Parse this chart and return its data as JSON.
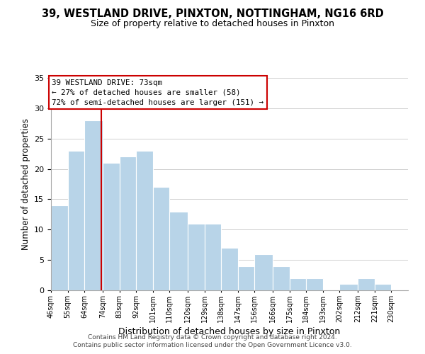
{
  "title": "39, WESTLAND DRIVE, PINXTON, NOTTINGHAM, NG16 6RD",
  "subtitle": "Size of property relative to detached houses in Pinxton",
  "xlabel": "Distribution of detached houses by size in Pinxton",
  "ylabel": "Number of detached properties",
  "footer_lines": [
    "Contains HM Land Registry data © Crown copyright and database right 2024.",
    "Contains public sector information licensed under the Open Government Licence v3.0."
  ],
  "bin_labels": [
    "46sqm",
    "55sqm",
    "64sqm",
    "74sqm",
    "83sqm",
    "92sqm",
    "101sqm",
    "110sqm",
    "120sqm",
    "129sqm",
    "138sqm",
    "147sqm",
    "156sqm",
    "166sqm",
    "175sqm",
    "184sqm",
    "193sqm",
    "202sqm",
    "212sqm",
    "221sqm",
    "230sqm"
  ],
  "bar_heights": [
    14,
    23,
    28,
    21,
    22,
    23,
    17,
    13,
    11,
    11,
    7,
    4,
    6,
    4,
    2,
    2,
    0,
    1,
    2,
    1,
    0
  ],
  "bar_color": "#b8d4e8",
  "bar_edge_color": "#ffffff",
  "grid_color": "#d0d0d0",
  "property_line_x": 73,
  "property_line_color": "#cc0000",
  "annotation_text": "39 WESTLAND DRIVE: 73sqm\n← 27% of detached houses are smaller (58)\n72% of semi-detached houses are larger (151) →",
  "annotation_box_color": "#ffffff",
  "annotation_box_edge_color": "#cc0000",
  "ylim": [
    0,
    35
  ],
  "yticks": [
    0,
    5,
    10,
    15,
    20,
    25,
    30,
    35
  ],
  "bin_edges": [
    46,
    55,
    64,
    74,
    83,
    92,
    101,
    110,
    120,
    129,
    138,
    147,
    156,
    166,
    175,
    184,
    193,
    202,
    212,
    221,
    230,
    239
  ]
}
